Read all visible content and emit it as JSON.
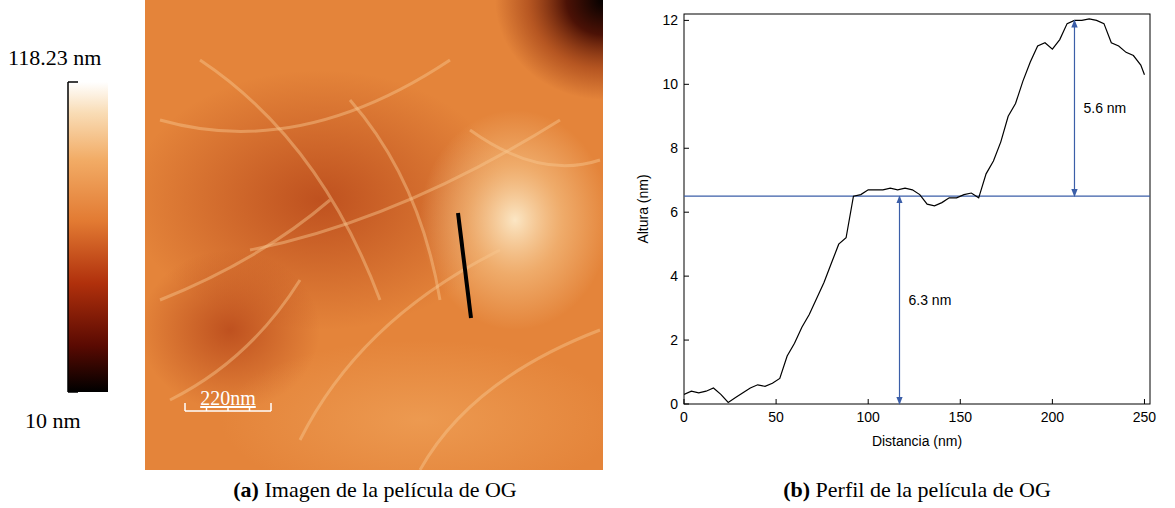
{
  "chart_data": {
    "type": "line",
    "title": "Perfil de la película de OG",
    "caption_letter": "(b)",
    "x_label": "Distancia (nm)",
    "y_label": "Altura (nm)",
    "color": "#000000",
    "x": [
      0,
      4,
      8,
      12,
      16,
      20,
      24,
      28,
      32,
      36,
      40,
      44,
      48,
      52,
      56,
      60,
      64,
      68,
      72,
      76,
      80,
      84,
      88,
      92,
      96,
      100,
      104,
      108,
      112,
      116,
      120,
      124,
      128,
      132,
      136,
      140,
      144,
      148,
      152,
      156,
      160,
      164,
      168,
      172,
      176,
      180,
      184,
      188,
      192,
      196,
      200,
      204,
      208,
      212,
      216,
      220,
      224,
      228,
      232,
      236,
      240,
      244,
      248,
      250
    ],
    "values": [
      0.3,
      0.4,
      0.35,
      0.4,
      0.5,
      0.3,
      0.05,
      0.2,
      0.35,
      0.5,
      0.6,
      0.55,
      0.65,
      0.8,
      1.5,
      1.9,
      2.4,
      2.8,
      3.3,
      3.8,
      4.4,
      5.0,
      5.2,
      6.5,
      6.55,
      6.7,
      6.7,
      6.7,
      6.75,
      6.7,
      6.75,
      6.7,
      6.55,
      6.25,
      6.2,
      6.3,
      6.45,
      6.45,
      6.55,
      6.6,
      6.45,
      7.2,
      7.6,
      8.2,
      9.0,
      9.4,
      10.1,
      10.7,
      11.2,
      11.3,
      11.1,
      11.4,
      11.9,
      12.0,
      12.0,
      12.05,
      12.0,
      11.9,
      11.3,
      11.2,
      11.0,
      10.9,
      10.6,
      10.3
    ],
    "xlim": [
      0,
      253
    ],
    "ylim": [
      0,
      12.2
    ],
    "xticks": [
      0,
      50,
      100,
      150,
      200,
      250
    ],
    "yticks": [
      0,
      2,
      4,
      6,
      8,
      10,
      12
    ],
    "reference_line": {
      "y": 6.5,
      "color": "#3b5ea8"
    },
    "annotations": [
      {
        "text": "6.3 nm",
        "x": 117,
        "y_from": 0,
        "y_to": 6.5
      },
      {
        "text": "5.6 nm",
        "x": 212,
        "y_from": 6.5,
        "y_to": 12
      }
    ]
  },
  "image_panel": {
    "caption_letter": "(a)",
    "caption": "Imagen de la película de OG",
    "colorbar": {
      "range": [
        10,
        118.23
      ],
      "ticks": [
        {
          "value": 118.23,
          "label": "118.23 nm"
        },
        {
          "value": 10,
          "label": "10 nm"
        }
      ]
    },
    "scale_bar": "220nm"
  }
}
